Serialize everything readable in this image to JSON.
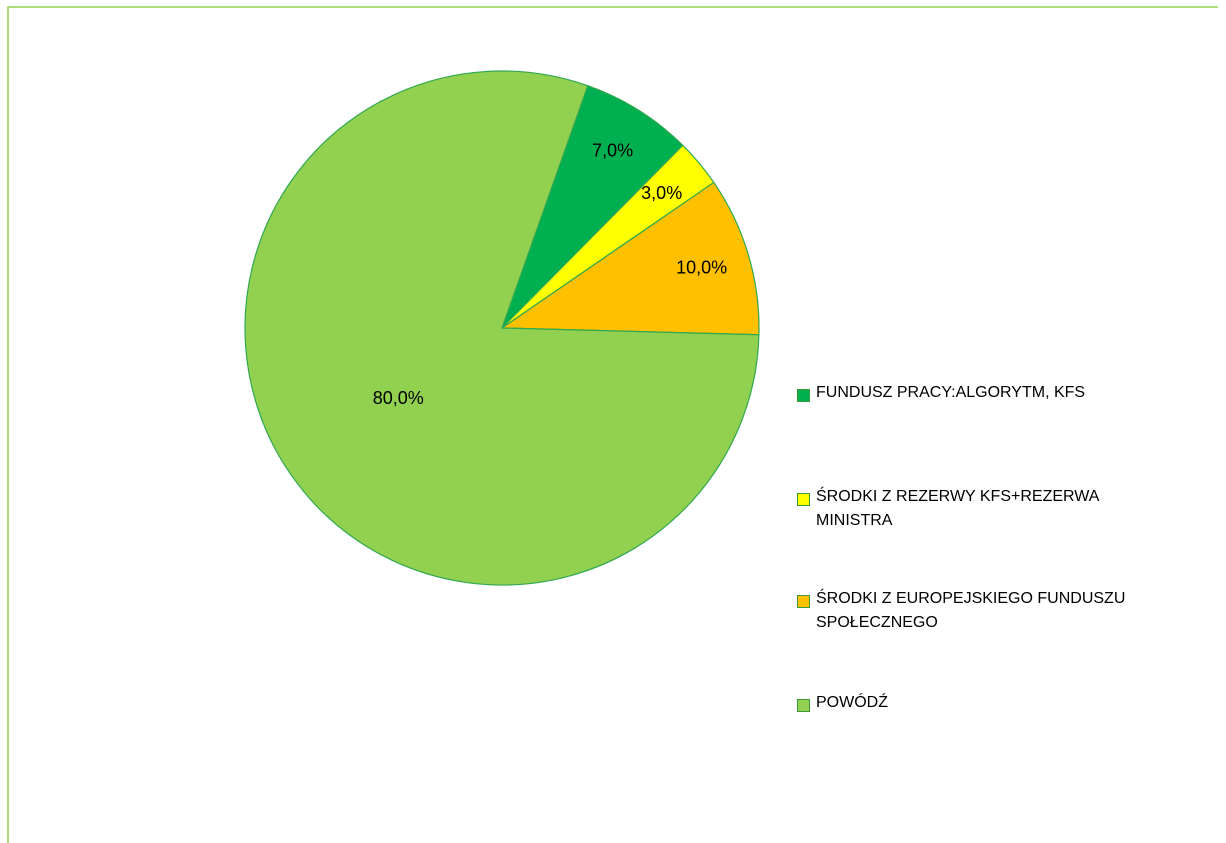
{
  "chart_data": {
    "type": "pie",
    "categories": [
      "FUNDUSZ PRACY:ALGORYTM, KFS",
      "ŚRODKI Z REZERWY KFS+REZERWA MINISTRA",
      "ŚRODKI Z EUROPEJSKIEGO FUNDUSZU SPOŁECZNEGO",
      "POWÓDŹ"
    ],
    "values": [
      7,
      3,
      10,
      80
    ],
    "value_labels": [
      "7,0%",
      "3,0%",
      "10,0%",
      "80,0%"
    ],
    "colors": [
      "#00b050",
      "#ffff00",
      "#ffc000",
      "#92d050"
    ],
    "legend": "right"
  }
}
